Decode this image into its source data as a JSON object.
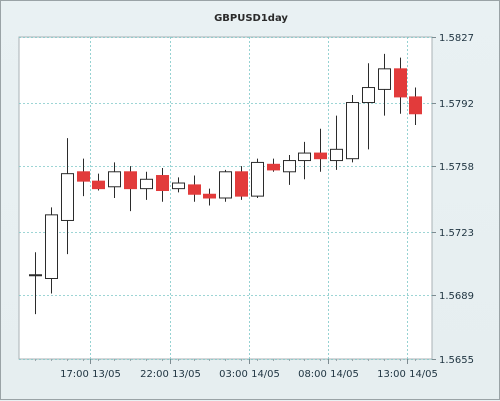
{
  "chart_data": {
    "type": "candlestick",
    "title": "GBPUSD1day",
    "xlabel": "",
    "ylabel": "",
    "ylim": [
      1.5655,
      1.5827
    ],
    "grid": true,
    "y_ticks": [
      "1.5827",
      "1.5792",
      "1.5758",
      "1.5723",
      "1.5689",
      "1.5655"
    ],
    "x_ticks": [
      "17:00 13/05",
      "22:00 13/05",
      "03:00 14/05",
      "08:00 14/05",
      "13:00 14/05"
    ],
    "bullish_color": "#ffffff",
    "bearish_color": "#e23b3b",
    "grid_color": "#7dc7c7",
    "candles": [
      {
        "open": 1.57,
        "high": 1.5712,
        "low": 1.5679,
        "close": 1.57
      },
      {
        "open": 1.5698,
        "high": 1.5736,
        "low": 1.569,
        "close": 1.5732
      },
      {
        "open": 1.5729,
        "high": 1.5773,
        "low": 1.5711,
        "close": 1.5754
      },
      {
        "open": 1.5755,
        "high": 1.5762,
        "low": 1.5742,
        "close": 1.575
      },
      {
        "open": 1.575,
        "high": 1.5754,
        "low": 1.5745,
        "close": 1.5746
      },
      {
        "open": 1.5747,
        "high": 1.576,
        "low": 1.5741,
        "close": 1.5755
      },
      {
        "open": 1.5755,
        "high": 1.5758,
        "low": 1.5734,
        "close": 1.5746
      },
      {
        "open": 1.5746,
        "high": 1.5755,
        "low": 1.574,
        "close": 1.5751
      },
      {
        "open": 1.5753,
        "high": 1.5757,
        "low": 1.5739,
        "close": 1.5745
      },
      {
        "open": 1.5746,
        "high": 1.5752,
        "low": 1.5744,
        "close": 1.5749
      },
      {
        "open": 1.5748,
        "high": 1.5753,
        "low": 1.5739,
        "close": 1.5743
      },
      {
        "open": 1.5743,
        "high": 1.5746,
        "low": 1.5737,
        "close": 1.5741
      },
      {
        "open": 1.5741,
        "high": 1.5756,
        "low": 1.5739,
        "close": 1.5755
      },
      {
        "open": 1.5755,
        "high": 1.5758,
        "low": 1.574,
        "close": 1.5742
      },
      {
        "open": 1.5742,
        "high": 1.5762,
        "low": 1.5741,
        "close": 1.576
      },
      {
        "open": 1.5759,
        "high": 1.5762,
        "low": 1.5755,
        "close": 1.5756
      },
      {
        "open": 1.5755,
        "high": 1.5764,
        "low": 1.5748,
        "close": 1.5761
      },
      {
        "open": 1.5761,
        "high": 1.5771,
        "low": 1.5751,
        "close": 1.5765
      },
      {
        "open": 1.5765,
        "high": 1.5778,
        "low": 1.5755,
        "close": 1.5762
      },
      {
        "open": 1.5761,
        "high": 1.5785,
        "low": 1.5756,
        "close": 1.5767
      },
      {
        "open": 1.5762,
        "high": 1.5796,
        "low": 1.576,
        "close": 1.5792
      },
      {
        "open": 1.5792,
        "high": 1.5813,
        "low": 1.5767,
        "close": 1.58
      },
      {
        "open": 1.5799,
        "high": 1.5818,
        "low": 1.5785,
        "close": 1.581
      },
      {
        "open": 1.581,
        "high": 1.5816,
        "low": 1.5786,
        "close": 1.5795
      },
      {
        "open": 1.5795,
        "high": 1.58,
        "low": 1.578,
        "close": 1.5786
      }
    ]
  }
}
